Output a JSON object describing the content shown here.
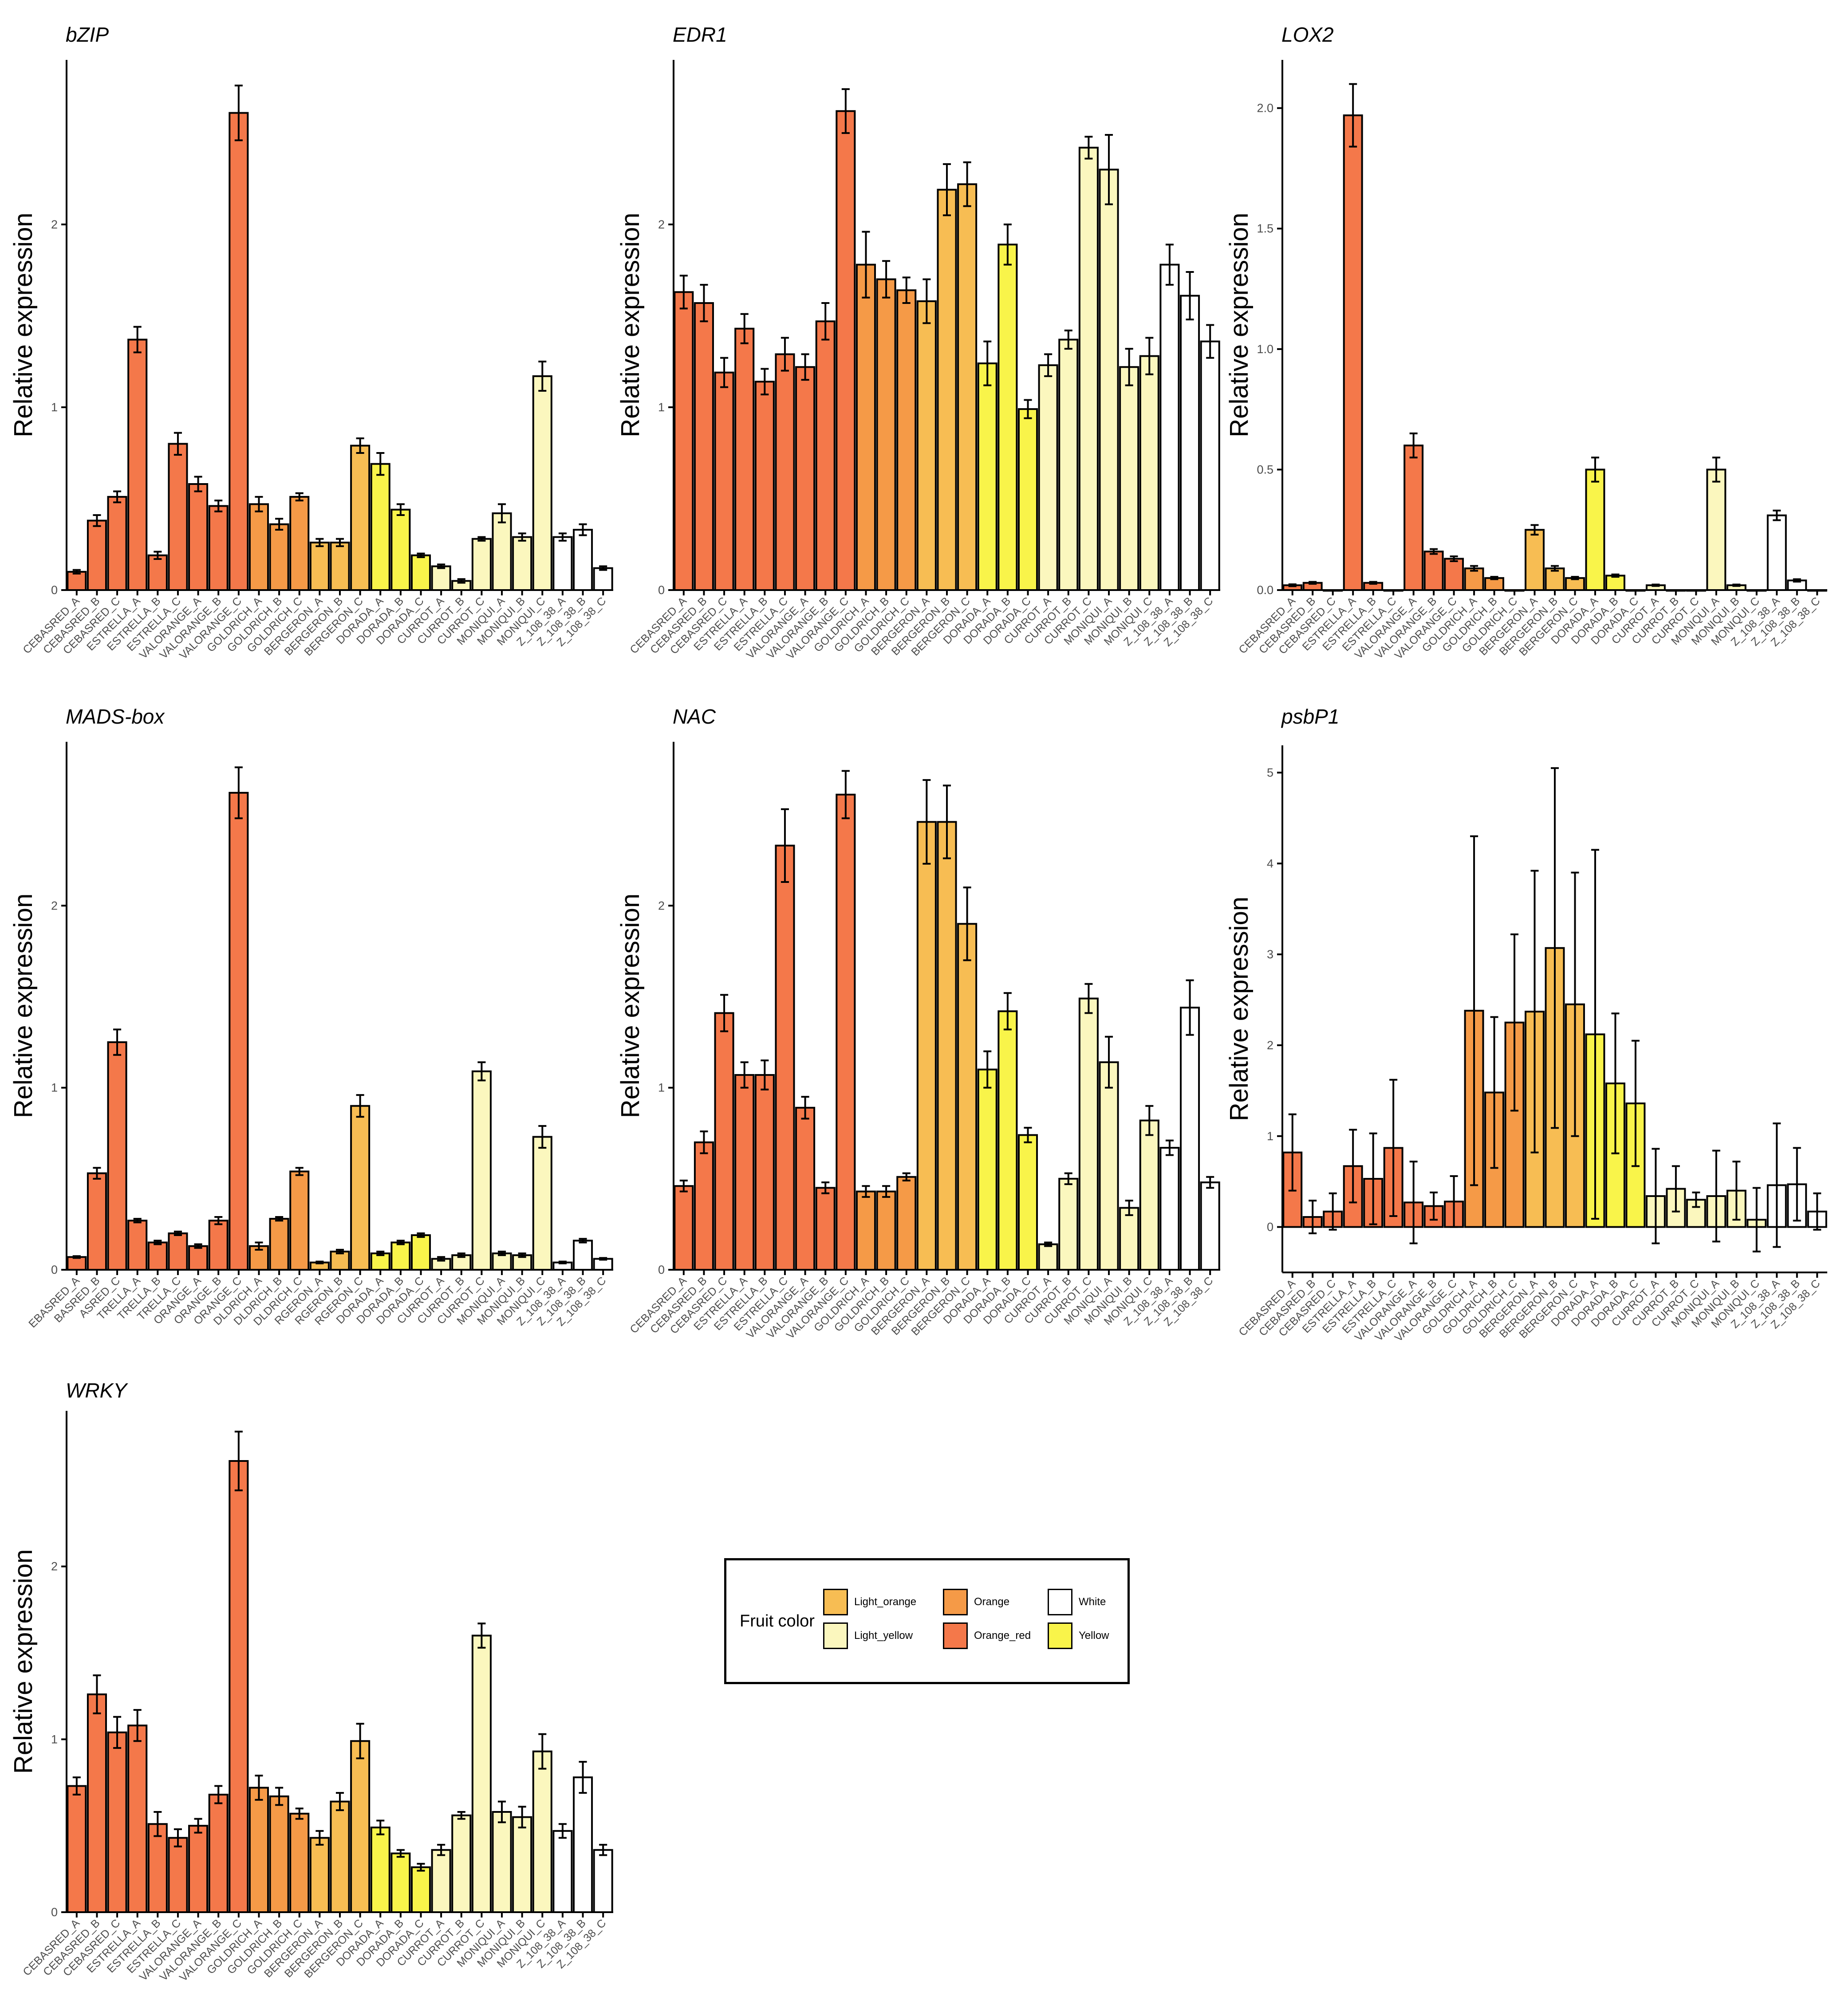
{
  "colors": {
    "Orange_red": "#F4784A",
    "Orange": "#F59A47",
    "Light_orange": "#F7BD53",
    "Yellow": "#F9F44A",
    "Light_yellow": "#FBF7BE",
    "White": "#FFFFFF"
  },
  "axis_label": "Relative expression",
  "categories": [
    "CEBASRED_A",
    "CEBASRED_B",
    "CEBASRED_C",
    "ESTRELLA_A",
    "ESTRELLA_B",
    "ESTRELLA_C",
    "VALORANGE_A",
    "VALORANGE_B",
    "VALORANGE_C",
    "GOLDRICH_A",
    "GOLDRICH_B",
    "GOLDRICH_C",
    "BERGERON_A",
    "BERGERON_B",
    "BERGERON_C",
    "DORADA_A",
    "DORADA_B",
    "DORADA_C",
    "CURROT_A",
    "CURROT_B",
    "CURROT_C",
    "MONIQUI_A",
    "MONIQUI_B",
    "MONIQUI_C",
    "Z_108_38_A",
    "Z_108_38_B",
    "Z_108_38_C"
  ],
  "categories_mads_clipped": [
    "EBASRED_A",
    "BASRED_B",
    "ASRED_C",
    "TRELLA_A",
    "TRELLA_B",
    "TRELLA_C",
    "ORANGE_A",
    "ORANGE_B",
    "ORANGE_C",
    "DLDRICH_A",
    "DLDRICH_B",
    "DLDRICH_C",
    "RGERON_A",
    "RGERON_B",
    "RGERON_C",
    "DORADA_A",
    "DORADA_B",
    "DORADA_C",
    "CURROT_A",
    "CURROT_B",
    "CURROT_C",
    "MONIQUI_A",
    "MONIQUI_B",
    "MONIQUI_C",
    "Z_108_38_A",
    "Z_108_38_B",
    "Z_108_38_C"
  ],
  "bar_colors": [
    "Orange_red",
    "Orange_red",
    "Orange_red",
    "Orange_red",
    "Orange_red",
    "Orange_red",
    "Orange_red",
    "Orange_red",
    "Orange_red",
    "Orange",
    "Orange",
    "Orange",
    "Light_orange",
    "Light_orange",
    "Light_orange",
    "Yellow",
    "Yellow",
    "Yellow",
    "Light_yellow",
    "Light_yellow",
    "Light_yellow",
    "Light_yellow",
    "Light_yellow",
    "Light_yellow",
    "White",
    "White",
    "White"
  ],
  "legend": {
    "title": "Fruit color",
    "items": [
      {
        "label": "Light_orange",
        "color": "#F7BD53"
      },
      {
        "label": "Light_yellow",
        "color": "#FBF7BE"
      },
      {
        "label": "Orange",
        "color": "#F59A47"
      },
      {
        "label": "Orange_red",
        "color": "#F4784A"
      },
      {
        "label": "White",
        "color": "#FFFFFF"
      },
      {
        "label": "Yellow",
        "color": "#F9F44A"
      }
    ]
  },
  "chart_data": [
    {
      "type": "bar",
      "title": "bZIP",
      "ylabel": "Relative expression",
      "ylim": [
        0,
        2.9
      ],
      "yticks": [
        0,
        1,
        2
      ],
      "values": [
        0.1,
        0.38,
        0.51,
        1.37,
        0.19,
        0.8,
        0.58,
        0.46,
        2.61,
        0.47,
        0.36,
        0.51,
        0.26,
        0.26,
        0.79,
        0.69,
        0.44,
        0.19,
        0.13,
        0.05,
        0.28,
        0.42,
        0.29,
        1.17,
        0.29,
        0.33,
        0.12
      ],
      "errors": [
        0.01,
        0.03,
        0.03,
        0.07,
        0.02,
        0.06,
        0.04,
        0.03,
        0.15,
        0.04,
        0.03,
        0.02,
        0.02,
        0.02,
        0.04,
        0.06,
        0.03,
        0.01,
        0.01,
        0.01,
        0.01,
        0.05,
        0.02,
        0.08,
        0.02,
        0.03,
        0.01
      ]
    },
    {
      "type": "bar",
      "title": "EDR1",
      "ylabel": "Relative expression",
      "ylim": [
        0,
        2.9
      ],
      "yticks": [
        0,
        1,
        2
      ],
      "values": [
        1.63,
        1.57,
        1.19,
        1.43,
        1.14,
        1.29,
        1.22,
        1.47,
        2.62,
        1.78,
        1.7,
        1.64,
        1.58,
        2.19,
        2.22,
        1.24,
        1.89,
        0.99,
        1.23,
        1.37,
        2.42,
        2.3,
        1.22,
        1.28,
        1.78,
        1.61,
        1.36
      ],
      "errors": [
        0.09,
        0.1,
        0.08,
        0.08,
        0.07,
        0.09,
        0.07,
        0.1,
        0.12,
        0.18,
        0.1,
        0.07,
        0.12,
        0.14,
        0.12,
        0.12,
        0.11,
        0.05,
        0.06,
        0.05,
        0.06,
        0.19,
        0.1,
        0.1,
        0.11,
        0.13,
        0.09
      ]
    },
    {
      "type": "bar",
      "title": "LOX2",
      "ylabel": "Relative expression",
      "ylim": [
        0,
        2.2
      ],
      "yticks": [
        0,
        0.5,
        1,
        1.5,
        2
      ],
      "ytick_labels": [
        "0.0",
        "0.5",
        "1.0",
        "1.5",
        "2.0"
      ],
      "values": [
        0.02,
        0.03,
        0.0,
        1.97,
        0.03,
        0.0,
        0.6,
        0.16,
        0.13,
        0.09,
        0.05,
        0.0,
        0.25,
        0.09,
        0.05,
        0.5,
        0.06,
        0.0,
        0.02,
        0.0,
        0.0,
        0.5,
        0.02,
        0.0,
        0.31,
        0.04,
        0.0
      ],
      "errors": [
        0.004,
        0.004,
        0.0,
        0.13,
        0.004,
        0.0,
        0.05,
        0.01,
        0.01,
        0.01,
        0.005,
        0.0,
        0.02,
        0.01,
        0.005,
        0.05,
        0.005,
        0.0,
        0.003,
        0.0,
        0.0,
        0.05,
        0.003,
        0.0,
        0.02,
        0.005,
        0.0
      ]
    },
    {
      "type": "bar",
      "title": "MADS-box",
      "ylabel": "Relative expression",
      "ylim": [
        0,
        2.9
      ],
      "yticks": [
        0,
        1,
        2
      ],
      "values": [
        0.07,
        0.53,
        1.25,
        0.27,
        0.15,
        0.2,
        0.13,
        0.27,
        2.62,
        0.13,
        0.28,
        0.54,
        0.04,
        0.1,
        0.9,
        0.09,
        0.15,
        0.19,
        0.06,
        0.08,
        1.09,
        0.09,
        0.08,
        0.73,
        0.04,
        0.16,
        0.06
      ],
      "errors": [
        0.005,
        0.03,
        0.07,
        0.01,
        0.01,
        0.01,
        0.01,
        0.02,
        0.14,
        0.02,
        0.01,
        0.02,
        0.005,
        0.01,
        0.06,
        0.01,
        0.01,
        0.01,
        0.01,
        0.01,
        0.05,
        0.01,
        0.01,
        0.06,
        0.005,
        0.01,
        0.005
      ]
    },
    {
      "type": "bar",
      "title": "NAC",
      "ylabel": "Relative expression",
      "ylim": [
        0,
        2.9
      ],
      "yticks": [
        0,
        1,
        2
      ],
      "values": [
        0.46,
        0.7,
        1.41,
        1.07,
        1.07,
        2.33,
        0.89,
        0.45,
        2.61,
        0.43,
        0.43,
        0.51,
        2.46,
        2.46,
        1.9,
        1.1,
        1.42,
        0.74,
        0.14,
        0.5,
        1.49,
        1.14,
        0.34,
        0.82,
        0.67,
        1.44,
        0.48
      ],
      "errors": [
        0.03,
        0.06,
        0.1,
        0.07,
        0.08,
        0.2,
        0.06,
        0.03,
        0.13,
        0.03,
        0.03,
        0.02,
        0.23,
        0.2,
        0.2,
        0.1,
        0.1,
        0.04,
        0.01,
        0.03,
        0.08,
        0.14,
        0.04,
        0.08,
        0.04,
        0.15,
        0.03
      ]
    },
    {
      "type": "bar",
      "title": "psbP1",
      "ylabel": "Relative expression",
      "ylim": [
        -0.5,
        5.3
      ],
      "yticks": [
        0,
        1,
        2,
        3,
        4,
        5
      ],
      "values": [
        0.82,
        0.11,
        0.17,
        0.67,
        0.53,
        0.87,
        0.27,
        0.23,
        0.28,
        2.38,
        1.48,
        2.25,
        2.37,
        3.07,
        2.45,
        2.12,
        1.58,
        1.36,
        0.34,
        0.42,
        0.3,
        0.34,
        0.4,
        0.08,
        0.46,
        0.47,
        0.17
      ],
      "errors": [
        0.42,
        0.18,
        0.2,
        0.4,
        0.5,
        0.75,
        0.45,
        0.15,
        0.28,
        1.92,
        0.83,
        0.97,
        1.55,
        1.98,
        1.45,
        2.03,
        0.77,
        0.69,
        0.52,
        0.25,
        0.08,
        0.5,
        0.32,
        0.35,
        0.68,
        0.4,
        0.2
      ]
    },
    {
      "type": "bar",
      "title": "WRKY",
      "ylabel": "Relative expression",
      "ylim": [
        0,
        2.9
      ],
      "yticks": [
        0,
        1,
        2
      ],
      "values": [
        0.73,
        1.26,
        1.04,
        1.08,
        0.51,
        0.43,
        0.5,
        0.68,
        2.61,
        0.72,
        0.67,
        0.57,
        0.43,
        0.64,
        0.99,
        0.49,
        0.34,
        0.26,
        0.36,
        0.56,
        1.6,
        0.58,
        0.55,
        0.93,
        0.47,
        0.78,
        0.36
      ],
      "errors": [
        0.05,
        0.11,
        0.09,
        0.09,
        0.07,
        0.05,
        0.04,
        0.05,
        0.17,
        0.07,
        0.05,
        0.03,
        0.04,
        0.05,
        0.1,
        0.04,
        0.02,
        0.02,
        0.03,
        0.02,
        0.07,
        0.06,
        0.06,
        0.1,
        0.04,
        0.09,
        0.03
      ]
    }
  ]
}
